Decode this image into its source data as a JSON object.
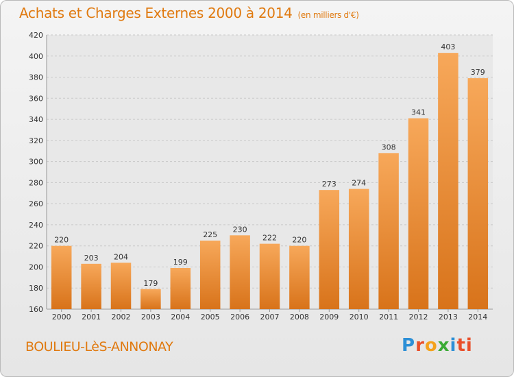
{
  "chart_data": {
    "type": "bar",
    "title": "Achats et Charges Externes 2000 à 2014",
    "subtitle": "(en milliers d'€)",
    "categories": [
      "2000",
      "2001",
      "2002",
      "2003",
      "2004",
      "2005",
      "2006",
      "2007",
      "2008",
      "2009",
      "2010",
      "2011",
      "2012",
      "2013",
      "2014"
    ],
    "values": [
      220,
      203,
      204,
      179,
      199,
      225,
      230,
      222,
      220,
      273,
      274,
      308,
      341,
      403,
      379
    ],
    "ylim": [
      160,
      420
    ],
    "yticks": [
      160,
      180,
      200,
      220,
      240,
      260,
      280,
      300,
      320,
      340,
      360,
      380,
      400,
      420
    ],
    "grid": true,
    "bar_color": "#f0983e"
  },
  "commune": "BOULIEU-LèS-ANNONAY",
  "logo": [
    "P",
    "r",
    "o",
    "x",
    "i",
    "ti"
  ]
}
